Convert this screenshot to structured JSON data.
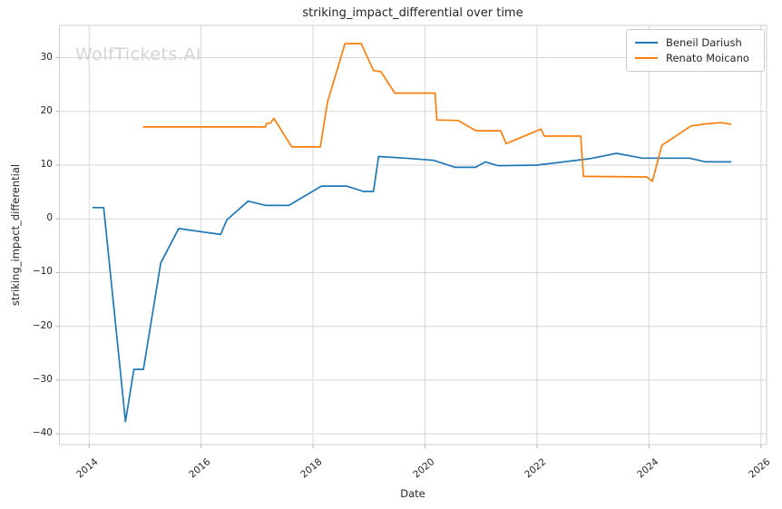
{
  "watermark": "WolfTickets.AI",
  "chart_data": {
    "type": "line",
    "title": "striking_impact_differential over time",
    "xlabel": "Date",
    "ylabel": "striking_impact_differential",
    "xlim": [
      2013.47,
      2026.1
    ],
    "ylim": [
      -42,
      36
    ],
    "xticks": [
      2014,
      2016,
      2018,
      2020,
      2022,
      2024,
      2026
    ],
    "yticks": [
      -40,
      -30,
      -20,
      -10,
      0,
      10,
      20,
      30
    ],
    "grid": true,
    "legend_position": "upper right",
    "colors": {
      "grid": "#d7d7d7",
      "spine": "#cfcfcf",
      "tick": "#b0b0b0",
      "text": "#262626",
      "watermark": "#d4d4d4"
    },
    "series": [
      {
        "name": "Beneil Dariush",
        "color": "#1f77b4",
        "x": [
          2014.06,
          2014.26,
          2014.65,
          2014.8,
          2014.97,
          2015.28,
          2015.6,
          2016.35,
          2016.46,
          2016.84,
          2017.16,
          2017.57,
          2018.15,
          2018.6,
          2018.9,
          2019.08,
          2019.17,
          2019.65,
          2020.15,
          2020.54,
          2020.9,
          2021.08,
          2021.3,
          2022.0,
          2022.94,
          2023.42,
          2023.88,
          2024.72,
          2025.01,
          2025.47
        ],
        "y": [
          2.1,
          2.1,
          -37.7,
          -28.0,
          -28.0,
          -8.2,
          -1.8,
          -2.9,
          -0.2,
          3.3,
          2.5,
          2.5,
          6.1,
          6.1,
          5.1,
          5.1,
          11.6,
          11.3,
          10.9,
          9.6,
          9.6,
          10.6,
          9.9,
          10.0,
          11.2,
          12.2,
          11.3,
          11.3,
          10.6,
          10.6
        ]
      },
      {
        "name": "Renato Moicano",
        "color": "#ff7f0e",
        "x": [
          2014.96,
          2017.15,
          2017.17,
          2017.24,
          2017.3,
          2017.62,
          2018.13,
          2018.26,
          2018.57,
          2018.86,
          2019.08,
          2019.21,
          2019.46,
          2020.18,
          2020.21,
          2020.59,
          2020.91,
          2021.35,
          2021.45,
          2022.07,
          2022.13,
          2022.78,
          2022.83,
          2023.96,
          2024.06,
          2024.23,
          2024.75,
          2025.04,
          2025.29,
          2025.47
        ],
        "y": [
          17.1,
          17.1,
          17.8,
          17.8,
          18.7,
          13.4,
          13.4,
          21.8,
          32.6,
          32.6,
          27.6,
          27.4,
          23.4,
          23.4,
          18.4,
          18.3,
          16.4,
          16.4,
          14.0,
          16.7,
          15.4,
          15.4,
          7.9,
          7.8,
          7.0,
          13.7,
          17.3,
          17.7,
          17.9,
          17.6
        ]
      }
    ]
  }
}
